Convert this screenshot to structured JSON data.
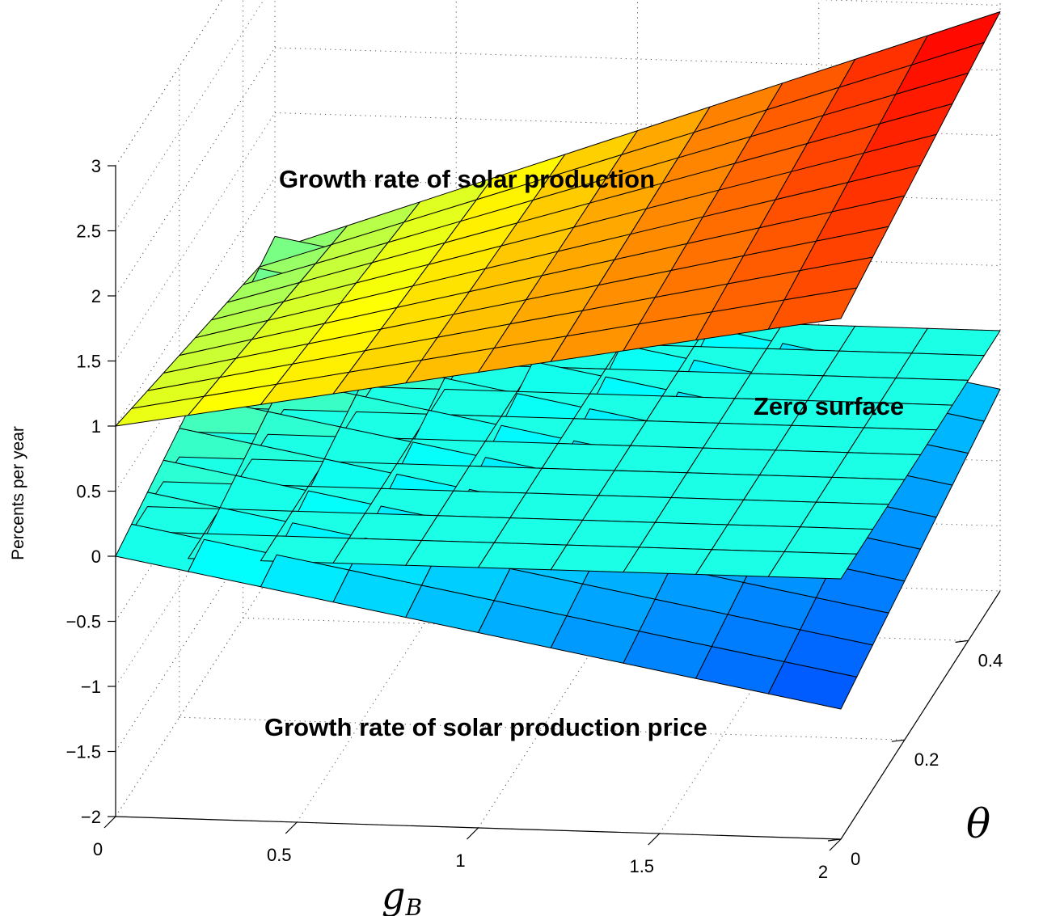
{
  "chart_data": {
    "type": "surface3d",
    "title": "",
    "xlabel": "g",
    "xlabel_sub": "B",
    "ylabel": "θ",
    "zlabel": "Percents per year",
    "xlim": [
      0,
      2
    ],
    "ylim": [
      0,
      0.5
    ],
    "zlim": [
      -2,
      3
    ],
    "x_ticks": [
      0,
      0.5,
      1,
      1.5,
      2
    ],
    "x_tick_labels": [
      "0",
      "0.5",
      "1",
      "1.5",
      "2"
    ],
    "y_ticks": [
      0,
      0.2,
      0.4
    ],
    "y_tick_labels": [
      "0",
      "0.2",
      "0.4"
    ],
    "z_ticks": [
      -2,
      -1.5,
      -1,
      -0.5,
      0,
      0.5,
      1,
      1.5,
      2,
      2.5,
      3
    ],
    "z_tick_labels": [
      "−2",
      "−1.5",
      "−1",
      "−0.5",
      "0",
      "0.5",
      "1",
      "1.5",
      "2",
      "2.5",
      "3"
    ],
    "grid": true,
    "colormap": "jet",
    "x_grid": [
      0,
      0.2,
      0.4,
      0.6,
      0.8,
      1.0,
      1.2,
      1.4,
      1.6,
      1.8,
      2.0
    ],
    "y_grid": [
      0,
      0.05,
      0.1,
      0.15,
      0.2,
      0.25,
      0.3,
      0.35,
      0.4,
      0.45,
      0.5
    ],
    "surfaces": [
      {
        "name": "production",
        "annotation": "Growth rate of solar production",
        "z_rows": [
          [
            1.0,
            1.1,
            1.2,
            1.3,
            1.4,
            1.5,
            1.6,
            1.7,
            1.8,
            1.9,
            2.0
          ],
          [
            0.945,
            1.055,
            1.165,
            1.275,
            1.385,
            1.495,
            1.605,
            1.715,
            1.825,
            1.935,
            2.045
          ],
          [
            0.89,
            1.01,
            1.13,
            1.25,
            1.37,
            1.49,
            1.61,
            1.73,
            1.85,
            1.97,
            2.09
          ],
          [
            0.835,
            0.965,
            1.095,
            1.225,
            1.355,
            1.485,
            1.615,
            1.745,
            1.875,
            2.005,
            2.135
          ],
          [
            0.78,
            0.92,
            1.06,
            1.2,
            1.34,
            1.48,
            1.62,
            1.76,
            1.9,
            2.04,
            2.18
          ],
          [
            0.725,
            0.875,
            1.025,
            1.175,
            1.325,
            1.475,
            1.625,
            1.775,
            1.925,
            2.075,
            2.225
          ],
          [
            0.67,
            0.83,
            0.99,
            1.15,
            1.31,
            1.47,
            1.63,
            1.79,
            1.95,
            2.11,
            2.27
          ],
          [
            0.615,
            0.785,
            0.955,
            1.125,
            1.295,
            1.465,
            1.635,
            1.805,
            1.975,
            2.145,
            2.315
          ],
          [
            0.56,
            0.74,
            0.92,
            1.1,
            1.28,
            1.46,
            1.64,
            1.82,
            2.0,
            2.18,
            2.36
          ],
          [
            0.505,
            0.695,
            0.885,
            1.075,
            1.265,
            1.455,
            1.645,
            1.835,
            2.025,
            2.215,
            2.405
          ],
          [
            0.45,
            0.65,
            0.85,
            1.05,
            1.25,
            1.45,
            1.65,
            1.85,
            2.05,
            2.25,
            2.45
          ]
        ]
      },
      {
        "name": "zero",
        "annotation": "Zero surface",
        "z_rows": "all zero"
      },
      {
        "name": "price",
        "annotation": "Growth rate of solar production price",
        "z_rows": [
          [
            0.0,
            -0.1,
            -0.2,
            -0.3,
            -0.4,
            -0.5,
            -0.6,
            -0.7,
            -0.8,
            -0.9,
            -1.0
          ],
          [
            0.055,
            -0.045,
            -0.145,
            -0.245,
            -0.345,
            -0.445,
            -0.545,
            -0.645,
            -0.745,
            -0.845,
            -0.945
          ],
          [
            0.11,
            0.01,
            -0.09,
            -0.19,
            -0.29,
            -0.39,
            -0.49,
            -0.59,
            -0.69,
            -0.79,
            -0.89
          ],
          [
            0.165,
            0.065,
            -0.035,
            -0.135,
            -0.235,
            -0.335,
            -0.435,
            -0.535,
            -0.635,
            -0.735,
            -0.835
          ],
          [
            0.22,
            0.12,
            0.02,
            -0.08,
            -0.18,
            -0.28,
            -0.38,
            -0.48,
            -0.58,
            -0.68,
            -0.78
          ],
          [
            0.275,
            0.175,
            0.075,
            -0.025,
            -0.125,
            -0.225,
            -0.325,
            -0.425,
            -0.525,
            -0.625,
            -0.725
          ],
          [
            0.33,
            0.23,
            0.13,
            0.03,
            -0.07,
            -0.17,
            -0.27,
            -0.37,
            -0.47,
            -0.57,
            -0.67
          ],
          [
            0.385,
            0.285,
            0.185,
            0.085,
            -0.015,
            -0.115,
            -0.215,
            -0.315,
            -0.415,
            -0.515,
            -0.615
          ],
          [
            0.44,
            0.34,
            0.24,
            0.14,
            0.04,
            -0.06,
            -0.16,
            -0.26,
            -0.36,
            -0.46,
            -0.56
          ],
          [
            0.495,
            0.395,
            0.295,
            0.195,
            0.095,
            -0.005,
            -0.105,
            -0.205,
            -0.305,
            -0.405,
            -0.505
          ],
          [
            0.55,
            0.45,
            0.35,
            0.25,
            0.15,
            0.05,
            -0.05,
            -0.15,
            -0.25,
            -0.35,
            -0.45
          ]
        ]
      }
    ]
  }
}
